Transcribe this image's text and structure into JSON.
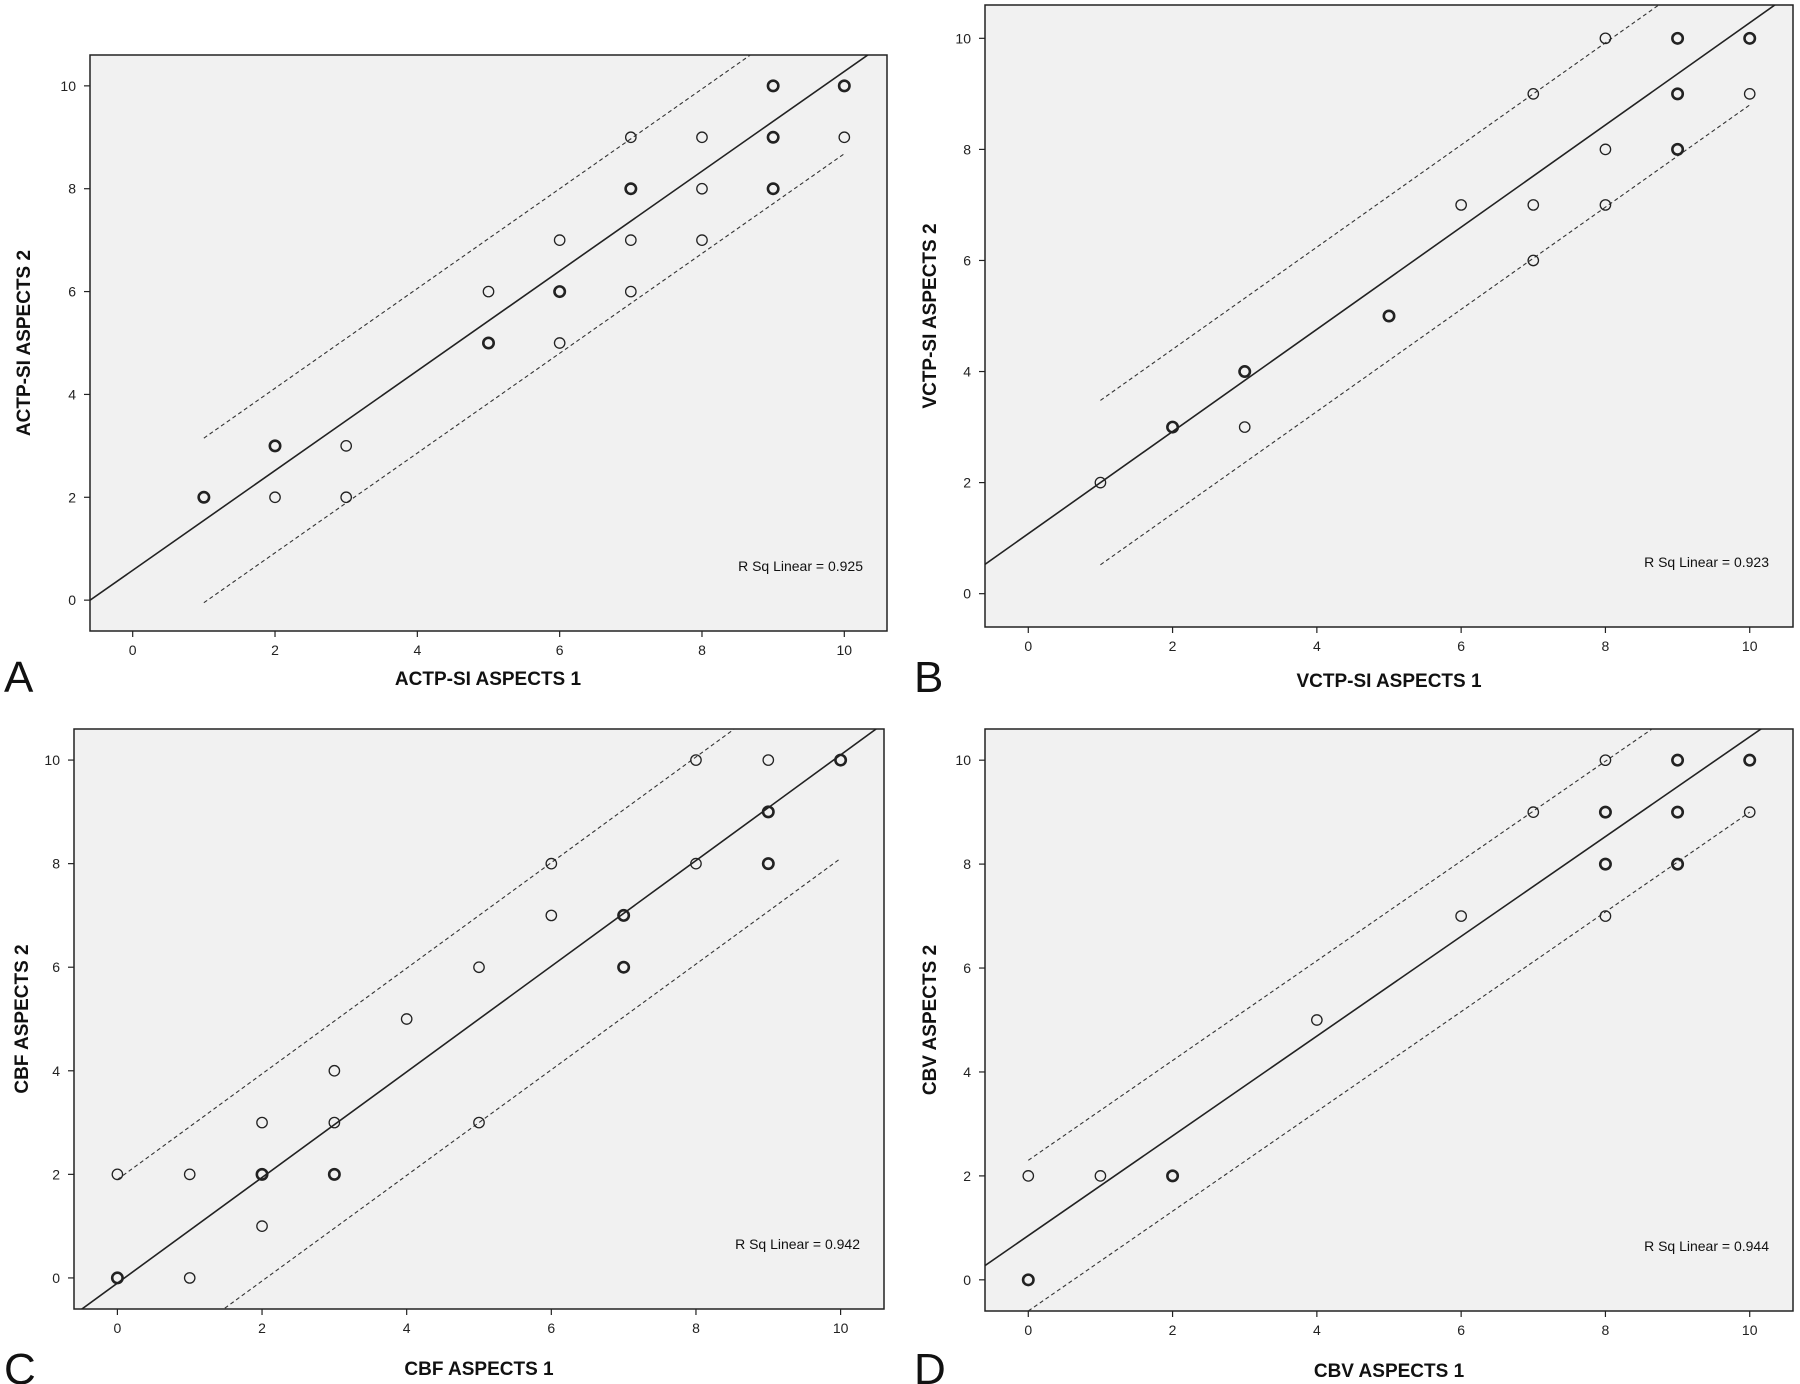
{
  "chart_data": [
    {
      "panel": "A",
      "type": "scatter",
      "xlabel": "ACTP-SI ASPECTS 1",
      "ylabel": "ACTP-SI ASPECTS 2",
      "xlim": [
        -0.6,
        10.6
      ],
      "ylim": [
        -0.6,
        10.6
      ],
      "xticks": [
        0,
        2,
        4,
        6,
        8,
        10
      ],
      "yticks": [
        0,
        2,
        4,
        6,
        8,
        10
      ],
      "annotation": "R Sq Linear = 0.925",
      "fit_line": {
        "slope": 0.97,
        "intercept": 0.58
      },
      "ci_offset": 1.6,
      "ci_xrange": [
        1,
        10
      ],
      "points": [
        [
          1,
          2
        ],
        [
          2,
          3
        ],
        [
          2,
          2
        ],
        [
          3,
          3
        ],
        [
          3,
          2
        ],
        [
          5,
          6
        ],
        [
          5,
          5
        ],
        [
          6,
          7
        ],
        [
          6,
          6
        ],
        [
          6,
          5
        ],
        [
          7,
          9
        ],
        [
          7,
          8
        ],
        [
          7,
          7
        ],
        [
          7,
          6
        ],
        [
          8,
          9
        ],
        [
          8,
          8
        ],
        [
          8,
          7
        ],
        [
          9,
          10
        ],
        [
          9,
          9
        ],
        [
          9,
          8
        ],
        [
          10,
          10
        ],
        [
          10,
          9
        ]
      ],
      "bold_points": [
        [
          1,
          2
        ],
        [
          2,
          3
        ],
        [
          5,
          5
        ],
        [
          6,
          6
        ],
        [
          7,
          8
        ],
        [
          9,
          10
        ],
        [
          9,
          9
        ],
        [
          9,
          8
        ],
        [
          10,
          10
        ]
      ]
    },
    {
      "panel": "B",
      "type": "scatter",
      "xlabel": "VCTP-SI ASPECTS 1",
      "ylabel": "VCTP-SI ASPECTS 2",
      "xlim": [
        -0.6,
        10.6
      ],
      "ylim": [
        -0.6,
        10.6
      ],
      "xticks": [
        0,
        2,
        4,
        6,
        8,
        10
      ],
      "yticks": [
        0,
        2,
        4,
        6,
        8,
        10
      ],
      "annotation": "R Sq Linear = 0.923",
      "fit_line": {
        "slope": 0.92,
        "intercept": 1.08
      },
      "ci_offset": 1.48,
      "ci_xrange": [
        1,
        10
      ],
      "points": [
        [
          1,
          2
        ],
        [
          2,
          3
        ],
        [
          3,
          4
        ],
        [
          3,
          3
        ],
        [
          5,
          5
        ],
        [
          6,
          7
        ],
        [
          7,
          9
        ],
        [
          7,
          7
        ],
        [
          7,
          6
        ],
        [
          8,
          10
        ],
        [
          8,
          8
        ],
        [
          8,
          7
        ],
        [
          9,
          10
        ],
        [
          9,
          9
        ],
        [
          9,
          8
        ],
        [
          10,
          10
        ],
        [
          10,
          9
        ]
      ],
      "bold_points": [
        [
          2,
          3
        ],
        [
          3,
          4
        ],
        [
          5,
          5
        ],
        [
          9,
          10
        ],
        [
          9,
          9
        ],
        [
          9,
          8
        ],
        [
          10,
          10
        ]
      ]
    },
    {
      "panel": "C",
      "type": "scatter",
      "xlabel": "CBF ASPECTS 1",
      "ylabel": "CBF ASPECTS 2",
      "xlim": [
        -0.6,
        10.6
      ],
      "ylim": [
        -0.6,
        10.6
      ],
      "xticks": [
        0,
        2,
        4,
        6,
        8,
        10
      ],
      "yticks": [
        0,
        2,
        4,
        6,
        8,
        10
      ],
      "annotation": "R Sq Linear = 0.942",
      "fit_line": {
        "slope": 1.02,
        "intercept": -0.1
      },
      "ci_offset": 2.0,
      "ci_xrange": [
        0,
        10
      ],
      "points": [
        [
          0,
          2
        ],
        [
          0,
          0
        ],
        [
          1,
          2
        ],
        [
          1,
          0
        ],
        [
          2,
          3
        ],
        [
          2,
          2
        ],
        [
          2,
          1
        ],
        [
          3,
          4
        ],
        [
          3,
          3
        ],
        [
          3,
          2
        ],
        [
          4,
          5
        ],
        [
          5,
          6
        ],
        [
          5,
          3
        ],
        [
          6,
          8
        ],
        [
          6,
          7
        ],
        [
          7,
          7
        ],
        [
          7,
          6
        ],
        [
          8,
          10
        ],
        [
          8,
          8
        ],
        [
          9,
          10
        ],
        [
          9,
          9
        ],
        [
          9,
          8
        ],
        [
          10,
          10
        ]
      ],
      "bold_points": [
        [
          0,
          0
        ],
        [
          2,
          2
        ],
        [
          3,
          2
        ],
        [
          7,
          7
        ],
        [
          7,
          6
        ],
        [
          9,
          9
        ],
        [
          9,
          8
        ],
        [
          10,
          10
        ]
      ]
    },
    {
      "panel": "D",
      "type": "scatter",
      "xlabel": "CBV ASPECTS 1",
      "ylabel": "CBV ASPECTS 2",
      "xlim": [
        -0.6,
        10.6
      ],
      "ylim": [
        -0.6,
        10.6
      ],
      "xticks": [
        0,
        2,
        4,
        6,
        8,
        10
      ],
      "yticks": [
        0,
        2,
        4,
        6,
        8,
        10
      ],
      "annotation": "R Sq Linear = 0.944",
      "fit_line": {
        "slope": 0.96,
        "intercept": 0.85
      },
      "ci_offset": 1.45,
      "ci_xrange": [
        0,
        10
      ],
      "points": [
        [
          0,
          2
        ],
        [
          0,
          0
        ],
        [
          1,
          2
        ],
        [
          2,
          2
        ],
        [
          4,
          5
        ],
        [
          6,
          7
        ],
        [
          7,
          9
        ],
        [
          8,
          10
        ],
        [
          8,
          9
        ],
        [
          8,
          8
        ],
        [
          8,
          7
        ],
        [
          9,
          10
        ],
        [
          9,
          9
        ],
        [
          9,
          8
        ],
        [
          10,
          10
        ],
        [
          10,
          9
        ]
      ],
      "bold_points": [
        [
          0,
          0
        ],
        [
          2,
          2
        ],
        [
          8,
          9
        ],
        [
          8,
          8
        ],
        [
          9,
          10
        ],
        [
          9,
          9
        ],
        [
          9,
          8
        ],
        [
          10,
          10
        ]
      ]
    }
  ]
}
